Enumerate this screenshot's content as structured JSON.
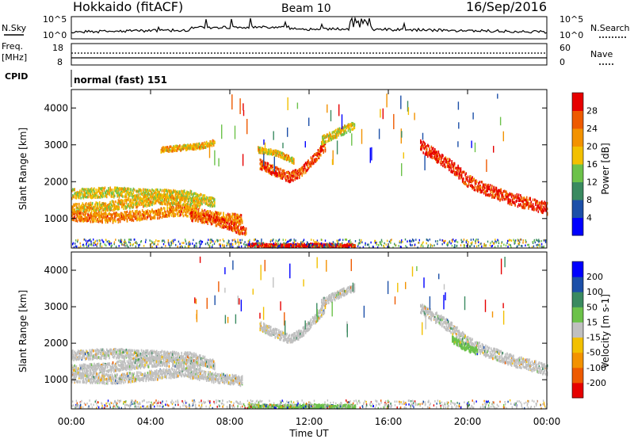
{
  "header": {
    "title": "Hokkaido (fitACF)",
    "beam": "Beam 10",
    "date": "16/Sep/2016"
  },
  "status_panels": {
    "nsky_label": "N.Sky",
    "nsky_ticks": [
      "10^5",
      "10^0"
    ],
    "nsearch_label": "N.Search",
    "nsearch_ticks": [
      "10^5",
      "10^0"
    ],
    "freq_label_1": "Freq.",
    "freq_label_2": "[MHz]",
    "freq_ticks": [
      "18",
      "8"
    ],
    "nave_label": "Nave",
    "nave_ticks": [
      "60",
      "0"
    ],
    "cpid_label": "CPID",
    "cpid_value": "normal (fast) 151"
  },
  "chart_data": [
    {
      "type": "heatmap",
      "name": "power",
      "ylabel": "Slant Range [km]",
      "yticks": [
        "4000",
        "3000",
        "2000",
        "1000"
      ],
      "ylim": [
        200,
        4500
      ],
      "xlim": [
        0,
        24
      ],
      "colorbar_label": "Power [dB]",
      "colorbar_ticks": [
        "28",
        "24",
        "20",
        "16",
        "12",
        "8",
        "4"
      ],
      "colors": [
        "#0000ff",
        "#1c4fa8",
        "#3a8a60",
        "#6cc24a",
        "#f2c000",
        "#f39200",
        "#ee5a00",
        "#e60000"
      ],
      "bands": [
        {
          "t": [
            0,
            2,
            4,
            6,
            7.2
          ],
          "r": [
            1700,
            1750,
            1700,
            1650,
            1450
          ],
          "w": 260,
          "level": 0.55
        },
        {
          "t": [
            0,
            1.5,
            3,
            4.5,
            5.5,
            6.5
          ],
          "r": [
            1300,
            1350,
            1450,
            1550,
            1500,
            1400
          ],
          "w": 260,
          "level": 0.6
        },
        {
          "t": [
            0,
            2,
            4,
            5.5,
            7,
            8.6
          ],
          "r": [
            1100,
            1050,
            1150,
            1250,
            1100,
            1000
          ],
          "w": 260,
          "level": 0.72
        },
        {
          "t": [
            6,
            7,
            8,
            8.8
          ],
          "r": [
            1100,
            1000,
            850,
            650
          ],
          "w": 240,
          "level": 0.82
        },
        {
          "t": [
            4.5,
            5.5,
            6.5,
            7.2
          ],
          "r": [
            2900,
            2950,
            3000,
            3100
          ],
          "w": 140,
          "level": 0.62
        },
        {
          "t": [
            9.5,
            10.3,
            11,
            11.6,
            12.2,
            12.8
          ],
          "r": [
            2500,
            2300,
            2150,
            2300,
            2650,
            3000
          ],
          "w": 260,
          "level": 0.85
        },
        {
          "t": [
            9.4,
            10.4,
            11.2
          ],
          "r": [
            2900,
            2800,
            2600
          ],
          "w": 140,
          "level": 0.6
        },
        {
          "t": [
            12.6,
            13.2,
            13.8,
            14.3
          ],
          "r": [
            3150,
            3300,
            3450,
            3550
          ],
          "w": 220,
          "level": 0.55
        },
        {
          "t": [
            17.6,
            18.5,
            19.3,
            20,
            21,
            22,
            23,
            24
          ],
          "r": [
            3000,
            2700,
            2400,
            2050,
            1800,
            1600,
            1450,
            1300
          ],
          "w": 320,
          "level": 0.9
        },
        {
          "t": [
            8.9,
            10,
            11,
            12,
            13,
            14.3
          ],
          "r": [
            320,
            300,
            300,
            310,
            300,
            300
          ],
          "w": 80,
          "level": 1.0
        }
      ]
    },
    {
      "type": "heatmap",
      "name": "velocity",
      "ylabel": "Slant Range [km]",
      "yticks": [
        "4000",
        "3000",
        "2000",
        "1000"
      ],
      "ylim": [
        200,
        4500
      ],
      "xlim": [
        0,
        24
      ],
      "colorbar_label": "Velocity [m s-1]",
      "colorbar_ticks": [
        "200",
        "100",
        "50",
        "15",
        "-15",
        "-50",
        "-100",
        "-200"
      ],
      "colors": [
        "#e60000",
        "#ee5a00",
        "#f39200",
        "#f2c000",
        "#c0c0c0",
        "#6cc24a",
        "#3a8a60",
        "#1c4fa8",
        "#0000ff"
      ],
      "bands": [
        {
          "t": [
            0,
            2,
            4,
            6,
            7.2
          ],
          "r": [
            1700,
            1750,
            1700,
            1650,
            1450
          ],
          "w": 260,
          "level": 0.5
        },
        {
          "t": [
            0,
            1.5,
            3,
            4.5,
            5.5,
            6.5
          ],
          "r": [
            1300,
            1350,
            1450,
            1550,
            1500,
            1400
          ],
          "w": 260,
          "level": 0.5
        },
        {
          "t": [
            0,
            2,
            4,
            5.5,
            7,
            8.6
          ],
          "r": [
            1100,
            1050,
            1150,
            1250,
            1100,
            1000
          ],
          "w": 260,
          "level": 0.5
        },
        {
          "t": [
            9.5,
            10.3,
            11,
            11.6,
            12.2,
            12.8
          ],
          "r": [
            2500,
            2300,
            2150,
            2300,
            2650,
            3000
          ],
          "w": 240,
          "level": 0.5
        },
        {
          "t": [
            12.6,
            13.2,
            13.8,
            14.3
          ],
          "r": [
            3150,
            3300,
            3450,
            3550
          ],
          "w": 200,
          "level": 0.5
        },
        {
          "t": [
            17.6,
            18.5,
            19.3,
            20,
            21,
            22,
            23,
            24
          ],
          "r": [
            3000,
            2700,
            2400,
            2050,
            1800,
            1600,
            1450,
            1300
          ],
          "w": 300,
          "level": 0.5
        },
        {
          "t": [
            19.2,
            19.8,
            20.5
          ],
          "r": [
            2150,
            1950,
            1800
          ],
          "w": 200,
          "level": 0.62
        },
        {
          "t": [
            8.9,
            10,
            11,
            12,
            13,
            14.3
          ],
          "r": [
            320,
            300,
            300,
            310,
            300,
            300
          ],
          "w": 80,
          "level": 0.62
        }
      ]
    }
  ],
  "xaxis": {
    "ticks": [
      "00:00",
      "04:00",
      "08:00",
      "12:00",
      "16:00",
      "20:00",
      "00:00"
    ],
    "label": "Time UT"
  }
}
